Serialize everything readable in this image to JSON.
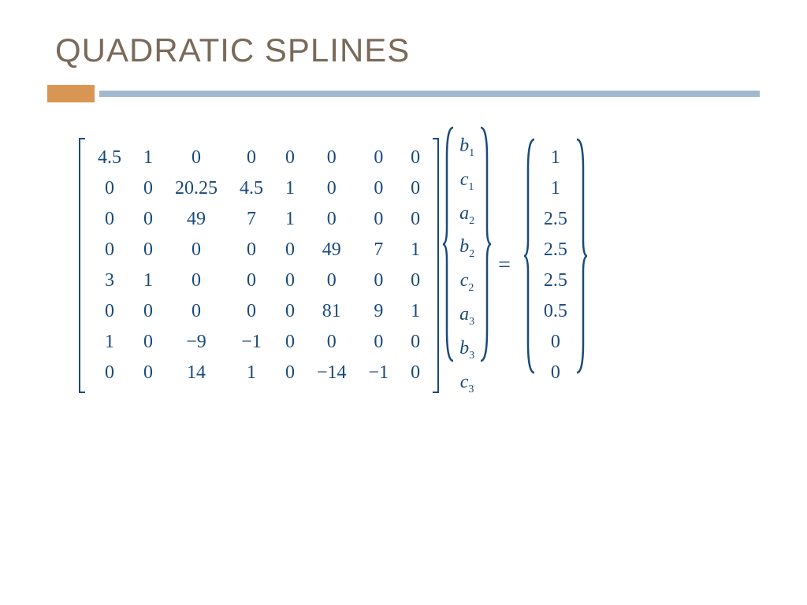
{
  "title": "QUADRATIC SPLINES",
  "colors": {
    "title_color": "#7a6a5a",
    "orange_bar": "#d99552",
    "blue_bar": "#a1b8cf",
    "math_color": "#1a4a7a",
    "background": "#ffffff"
  },
  "matrix": {
    "rows": [
      [
        "4.5",
        "1",
        "0",
        "0",
        "0",
        "0",
        "0",
        "0"
      ],
      [
        "0",
        "0",
        "20.25",
        "4.5",
        "1",
        "0",
        "0",
        "0"
      ],
      [
        "0",
        "0",
        "49",
        "7",
        "1",
        "0",
        "0",
        "0"
      ],
      [
        "0",
        "0",
        "0",
        "0",
        "0",
        "49",
        "7",
        "1"
      ],
      [
        "3",
        "1",
        "0",
        "0",
        "0",
        "0",
        "0",
        "0"
      ],
      [
        "0",
        "0",
        "0",
        "0",
        "0",
        "81",
        "9",
        "1"
      ],
      [
        "1",
        "0",
        "−9",
        "−1",
        "0",
        "0",
        "0",
        "0"
      ],
      [
        "0",
        "0",
        "14",
        "1",
        "0",
        "−14",
        "−1",
        "0"
      ]
    ]
  },
  "unknowns": [
    {
      "var": "b",
      "sub": "1"
    },
    {
      "var": "c",
      "sub": "1"
    },
    {
      "var": "a",
      "sub": "2"
    },
    {
      "var": "b",
      "sub": "2"
    },
    {
      "var": "c",
      "sub": "2"
    },
    {
      "var": "a",
      "sub": "3"
    },
    {
      "var": "b",
      "sub": "3"
    },
    {
      "var": "c",
      "sub": "3"
    }
  ],
  "equals": "=",
  "rhs": [
    "1",
    "1",
    "2.5",
    "2.5",
    "2.5",
    "0.5",
    "0",
    "0"
  ]
}
